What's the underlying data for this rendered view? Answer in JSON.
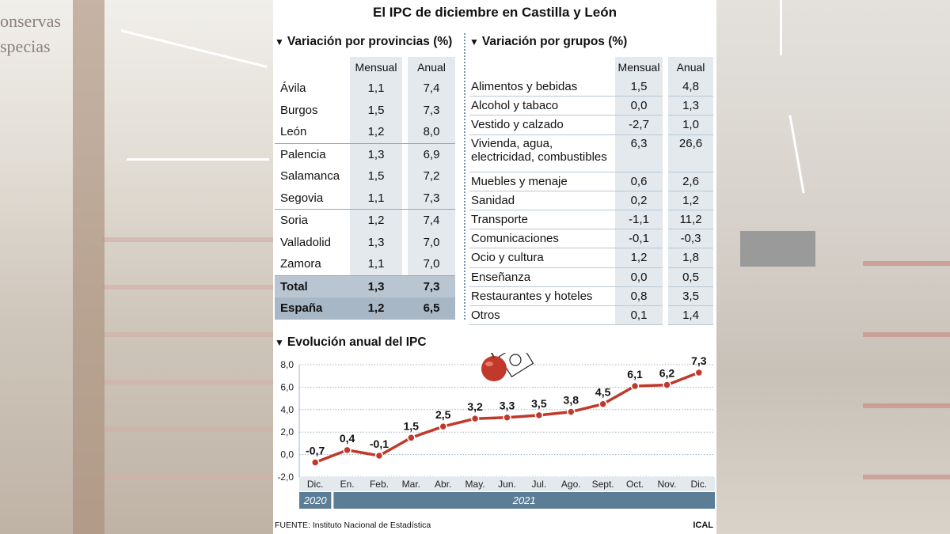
{
  "title": "El IPC de diciembre en Castilla y León",
  "provincias": {
    "title": "Variación por provincias (%)",
    "headers": [
      "Mensual",
      "Anual"
    ],
    "rows": [
      {
        "name": "Ávila",
        "mensual": "1,1",
        "anual": "7,4"
      },
      {
        "name": "Burgos",
        "mensual": "1,5",
        "anual": "7,3"
      },
      {
        "name": "León",
        "mensual": "1,2",
        "anual": "8,0"
      },
      {
        "name": "Palencia",
        "mensual": "1,3",
        "anual": "6,9"
      },
      {
        "name": "Salamanca",
        "mensual": "1,5",
        "anual": "7,2"
      },
      {
        "name": "Segovia",
        "mensual": "1,1",
        "anual": "7,3"
      },
      {
        "name": "Soria",
        "mensual": "1,2",
        "anual": "7,4"
      },
      {
        "name": "Valladolid",
        "mensual": "1,3",
        "anual": "7,0"
      },
      {
        "name": "Zamora",
        "mensual": "1,1",
        "anual": "7,0"
      },
      {
        "name": "Total",
        "mensual": "1,3",
        "anual": "7,3"
      },
      {
        "name": "España",
        "mensual": "1,2",
        "anual": "6,5"
      }
    ]
  },
  "grupos": {
    "title": "Variación por grupos (%)",
    "headers": [
      "Mensual",
      "Anual"
    ],
    "rows": [
      {
        "name": "Alimentos y bebidas",
        "mensual": "1,5",
        "anual": "4,8"
      },
      {
        "name": "Alcohol y tabaco",
        "mensual": "0,0",
        "anual": "1,3"
      },
      {
        "name": "Vestido y calzado",
        "mensual": "-2,7",
        "anual": "1,0"
      },
      {
        "name": "Vivienda, agua, electricidad, combustibles",
        "line1": "Vivienda, agua,",
        "line2": "electricidad, combustibles",
        "mensual": "6,3",
        "anual": "26,6"
      },
      {
        "name": "Muebles y menaje",
        "mensual": "0,6",
        "anual": "2,6"
      },
      {
        "name": "Sanidad",
        "mensual": "0,2",
        "anual": "1,2"
      },
      {
        "name": "Transporte",
        "mensual": "-1,1",
        "anual": "11,2"
      },
      {
        "name": "Comunicaciones",
        "mensual": "-0,1",
        "anual": "-0,3"
      },
      {
        "name": "Ocio y cultura",
        "mensual": "1,2",
        "anual": "1,8"
      },
      {
        "name": "Enseñanza",
        "mensual": "0,0",
        "anual": "0,5"
      },
      {
        "name": "Restaurantes y hoteles",
        "mensual": "0,8",
        "anual": "3,5"
      },
      {
        "name": "Otros",
        "mensual": "0,1",
        "anual": "1,4"
      }
    ]
  },
  "chart_data": {
    "type": "line",
    "title": "Evolución anual del IPC",
    "categories": [
      "Dic.",
      "En.",
      "Feb.",
      "Mar.",
      "Abr.",
      "May.",
      "Jun.",
      "Jul.",
      "Ago.",
      "Sept.",
      "Oct.",
      "Nov.",
      "Dic."
    ],
    "values": [
      -0.7,
      0.4,
      -0.1,
      1.5,
      2.5,
      3.2,
      3.3,
      3.5,
      3.8,
      4.5,
      6.1,
      6.2,
      7.3
    ],
    "value_labels": [
      "-0,7",
      "0,4",
      "-0,1",
      "1,5",
      "2,5",
      "3,2",
      "3,3",
      "3,5",
      "3,8",
      "4,5",
      "6,1",
      "6,2",
      "7,3"
    ],
    "ylim": [
      -2,
      8
    ],
    "yticks": [
      8,
      6,
      4,
      2,
      0,
      -2
    ],
    "ytick_labels": [
      "8,0",
      "6,0",
      "4,0",
      "2,0",
      "0,0",
      "-2,0"
    ],
    "grid": true,
    "years": [
      {
        "label": "2020",
        "span": 1
      },
      {
        "label": "2021",
        "span": 12
      }
    ],
    "colors": {
      "line": "#c0392b",
      "marker": "#c0392b",
      "year_bar": "#5b7d96"
    }
  },
  "footer": {
    "source": "FUENTE: Instituto Nacional de Estadística",
    "credit": "ICAL"
  },
  "background": {
    "left_text_1": "onservas",
    "left_text_2": "specias"
  }
}
